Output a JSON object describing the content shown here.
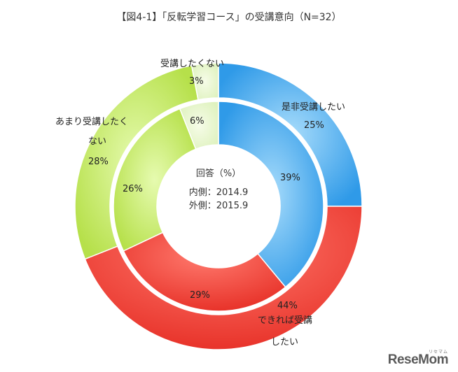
{
  "title": "【図4-1】「反転学習コース」の受講意向（N=32）",
  "watermark": {
    "text": "ReseMom",
    "kana": "リセマム"
  },
  "chart_data": {
    "type": "donut",
    "title": "【図4-1】「反転学習コース」の受講意向（N=32）",
    "center_title": "回答（%）",
    "center_lines": [
      "内側：2014.9",
      "外側：2015.9"
    ],
    "categories": [
      "是非受講したい",
      "できれば受講したい",
      "あまり受講したくない",
      "受講したくない"
    ],
    "colors": [
      "#4fb3ef",
      "#f14a40",
      "#c4ec5c",
      "#e9f7cf"
    ],
    "series": [
      {
        "name": "内側：2014.9",
        "values": [
          39,
          29,
          26,
          6
        ]
      },
      {
        "name": "外側：2015.9",
        "values": [
          25,
          44,
          28,
          3
        ]
      }
    ],
    "value_labels": {
      "inner": [
        "39%",
        "29%",
        "26%",
        "6%"
      ],
      "outer": [
        "25%",
        "44%",
        "28%",
        "3%"
      ]
    },
    "category_labels": {
      "ze_hi": "是非受講したい",
      "dekireba_line1": "できれば受講",
      "dekireba_line2": "したい",
      "amari_line1": "あまり受講したく",
      "amari_line2": "ない",
      "shitakunai": "受講したくない"
    }
  }
}
